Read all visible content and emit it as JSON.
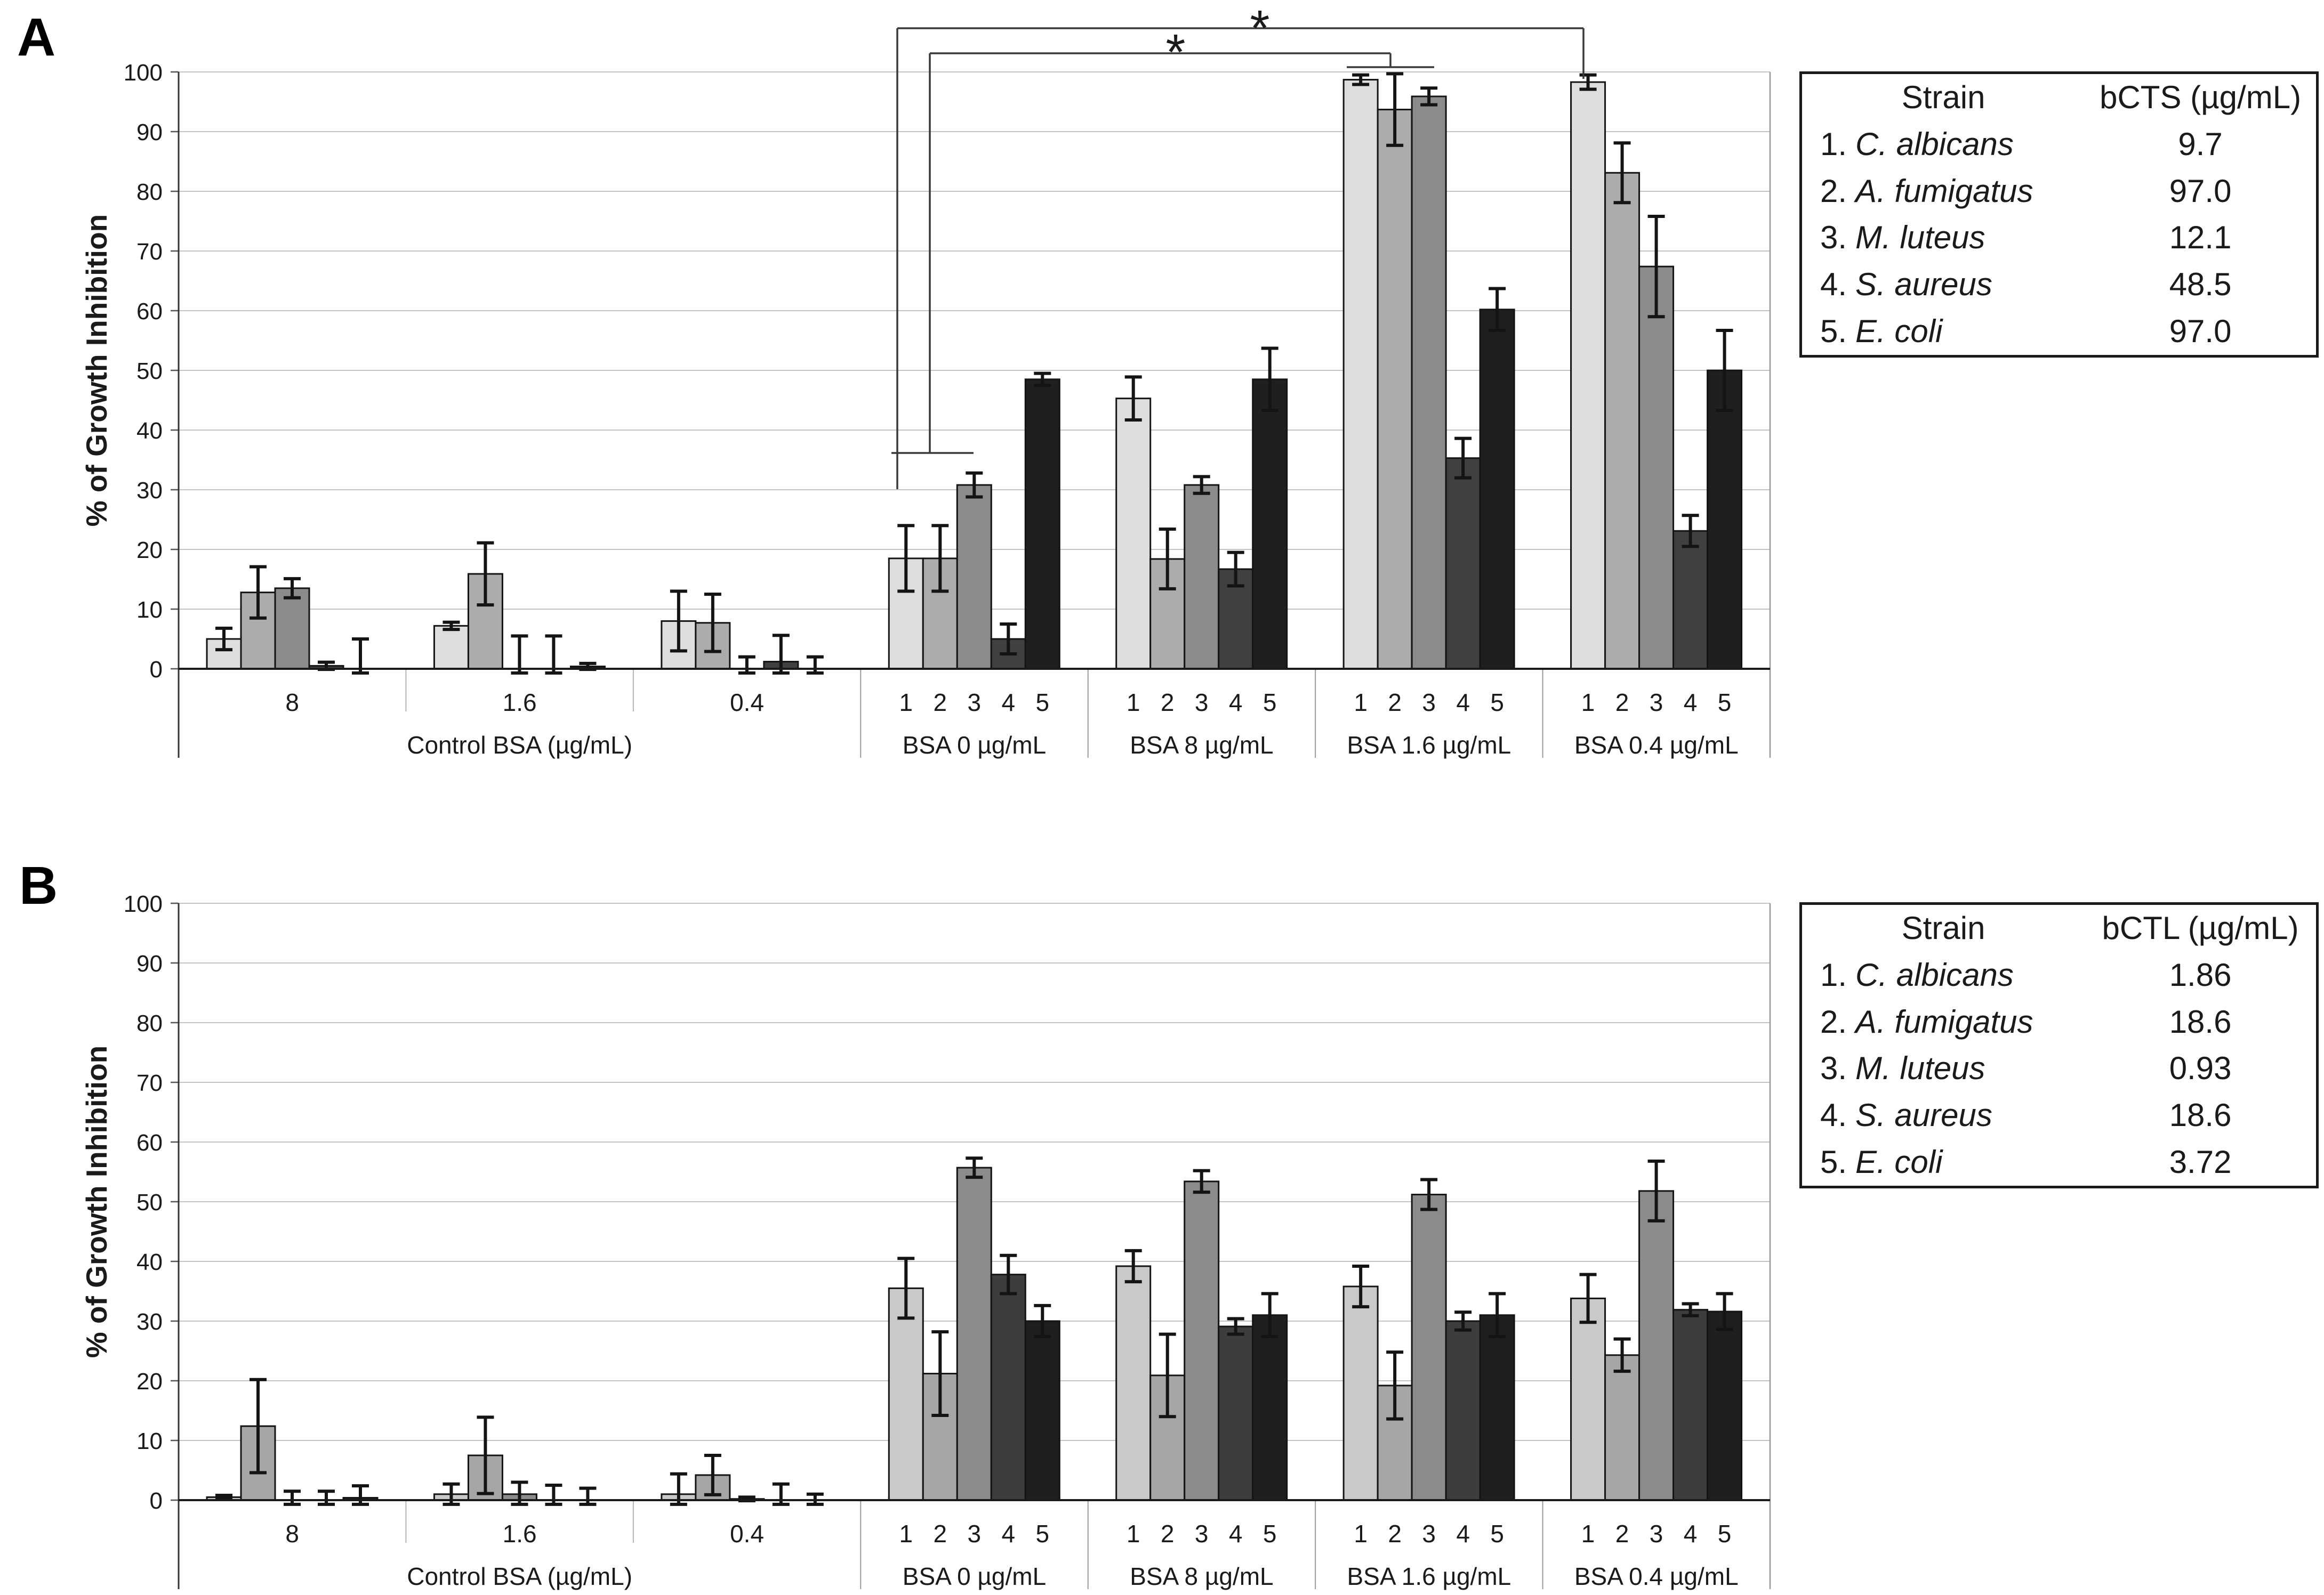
{
  "figure": {
    "panels": [
      {
        "letter": "A",
        "table": {
          "header": {
            "strain": "Strain",
            "mic": "bCTS (µg/mL)"
          },
          "rows": [
            {
              "num": "1.",
              "name": "C. albicans",
              "value": "9.7"
            },
            {
              "num": "2.",
              "name": "A. fumigatus",
              "value": "97.0"
            },
            {
              "num": "3.",
              "name": "M. luteus",
              "value": "12.1"
            },
            {
              "num": "4.",
              "name": "S. aureus",
              "value": "48.5"
            },
            {
              "num": "5.",
              "name": "E. coli",
              "value": "97.0"
            }
          ]
        }
      },
      {
        "letter": "B",
        "table": {
          "header": {
            "strain": "Strain",
            "mic": "bCTL (µg/mL)"
          },
          "rows": [
            {
              "num": "1.",
              "name": "C. albicans",
              "value": "1.86"
            },
            {
              "num": "2.",
              "name": "A. fumigatus",
              "value": "18.6"
            },
            {
              "num": "3.",
              "name": "M. luteus",
              "value": "0.93"
            },
            {
              "num": "4.",
              "name": "S. aureus",
              "value": "18.6"
            },
            {
              "num": "5.",
              "name": "E. coli",
              "value": "3.72"
            }
          ]
        }
      }
    ]
  },
  "chart_data": [
    {
      "type": "bar",
      "panel": "A",
      "title": "",
      "xlabel": "",
      "ylabel": "% of Growth Inhibition",
      "ylim": [
        0,
        100
      ],
      "ytick_step": 10,
      "grid": true,
      "legend_position": "none",
      "series_labels": [
        "1",
        "2",
        "3",
        "4",
        "5"
      ],
      "series_colors": [
        "#dedede",
        "#acacac",
        "#8b8b8b",
        "#404040",
        "#1f1f1f"
      ],
      "categories": [
        {
          "label": "Control BSA (µg/mL)",
          "groups": [
            0,
            1,
            2
          ]
        },
        {
          "label": "BSA 0 µg/mL",
          "groups": [
            3
          ]
        },
        {
          "label": "BSA 8 µg/mL",
          "groups": [
            4
          ]
        },
        {
          "label": "BSA 1.6 µg/mL",
          "groups": [
            5
          ]
        },
        {
          "label": "BSA 0.4 µg/mL",
          "groups": [
            6
          ]
        }
      ],
      "groups": [
        {
          "tick": "8",
          "per_bar_ticks": false,
          "values": [
            5.0,
            12.8,
            13.5,
            0.5,
            0.0
          ],
          "errors": [
            1.8,
            4.3,
            1.6,
            0.6,
            5.0
          ]
        },
        {
          "tick": "1.6",
          "per_bar_ticks": false,
          "values": [
            7.2,
            15.9,
            0.0,
            0.0,
            0.4
          ],
          "errors": [
            0.6,
            5.2,
            5.5,
            5.5,
            0.5
          ]
        },
        {
          "tick": "0.4",
          "per_bar_ticks": false,
          "values": [
            8.0,
            7.7,
            0.0,
            1.2,
            0.0
          ],
          "errors": [
            5.0,
            4.8,
            2.0,
            4.4,
            2.0
          ]
        },
        {
          "tick": "",
          "per_bar_ticks": true,
          "values": [
            18.5,
            18.5,
            30.8,
            5.0,
            48.5
          ],
          "errors": [
            5.5,
            5.5,
            2.0,
            2.5,
            1.0
          ]
        },
        {
          "tick": "",
          "per_bar_ticks": true,
          "values": [
            45.3,
            18.4,
            30.8,
            16.7,
            48.5
          ],
          "errors": [
            3.6,
            5.0,
            1.4,
            2.8,
            5.2
          ]
        },
        {
          "tick": "",
          "per_bar_ticks": true,
          "values": [
            98.7,
            93.7,
            95.9,
            35.3,
            60.2
          ],
          "errors": [
            0.8,
            6.0,
            1.4,
            3.3,
            3.5
          ]
        },
        {
          "tick": "",
          "per_bar_ticks": true,
          "values": [
            98.3,
            83.1,
            67.4,
            23.1,
            50.0
          ],
          "errors": [
            1.2,
            5.0,
            8.4,
            2.6,
            6.7
          ]
        }
      ],
      "significance": [
        {
          "symbol": "*",
          "note": "BSA 0 µg/mL strain 1 vs BSA 0.4 µg/mL",
          "segments": [
            [
              1683,
              53,
              1683,
              918
            ],
            [
              1683,
              53,
              2970,
              53
            ],
            [
              2970,
              53,
              2970,
              148
            ]
          ],
          "symbol_xy": [
            2363,
            85
          ]
        },
        {
          "symbol": "*",
          "note": "BSA 0 µg/mL strains 1-2 vs BSA 1.6 µg/mL",
          "segments": [
            [
              1744,
              100,
              1744,
              850
            ],
            [
              1672,
              850,
              1826,
              850
            ],
            [
              1744,
              100,
              2608,
              100
            ],
            [
              2608,
              100,
              2608,
              126
            ],
            [
              2526,
              126,
              2690,
              126
            ]
          ],
          "symbol_xy": [
            2205,
            130
          ]
        }
      ]
    },
    {
      "type": "bar",
      "panel": "B",
      "title": "",
      "xlabel": "",
      "ylabel": "% of Growth Inhibition",
      "ylim": [
        0,
        100
      ],
      "ytick_step": 10,
      "grid": true,
      "legend_position": "none",
      "series_labels": [
        "1",
        "2",
        "3",
        "4",
        "5"
      ],
      "series_colors": [
        "#c9c9c9",
        "#a6a6a6",
        "#8b8b8b",
        "#3d3d3d",
        "#1f1f1f"
      ],
      "categories": [
        {
          "label": "Control BSA (µg/mL)",
          "groups": [
            0,
            1,
            2
          ]
        },
        {
          "label": "BSA 0 µg/mL",
          "groups": [
            3
          ]
        },
        {
          "label": "BSA 8 µg/mL",
          "groups": [
            4
          ]
        },
        {
          "label": "BSA 1.6 µg/mL",
          "groups": [
            5
          ]
        },
        {
          "label": "BSA 0.4 µg/mL",
          "groups": [
            6
          ]
        }
      ],
      "groups": [
        {
          "tick": "8",
          "per_bar_ticks": false,
          "values": [
            0.5,
            12.4,
            0.0,
            0.0,
            0.4
          ],
          "errors": [
            0.3,
            7.8,
            1.5,
            1.5,
            2.0
          ]
        },
        {
          "tick": "1.6",
          "per_bar_ticks": false,
          "values": [
            1.0,
            7.5,
            1.0,
            0.0,
            0.0
          ],
          "errors": [
            1.7,
            6.4,
            2.0,
            2.5,
            2.0
          ]
        },
        {
          "tick": "0.4",
          "per_bar_ticks": false,
          "values": [
            1.0,
            4.2,
            0.2,
            0.0,
            0.0
          ],
          "errors": [
            3.4,
            3.3,
            0.3,
            2.7,
            1.0
          ]
        },
        {
          "tick": "",
          "per_bar_ticks": true,
          "values": [
            35.5,
            21.2,
            55.7,
            37.8,
            30.0
          ],
          "errors": [
            5.0,
            7.0,
            1.6,
            3.2,
            2.6
          ]
        },
        {
          "tick": "",
          "per_bar_ticks": true,
          "values": [
            39.2,
            20.9,
            53.4,
            29.1,
            31.0
          ],
          "errors": [
            2.6,
            6.9,
            1.8,
            1.3,
            3.6
          ]
        },
        {
          "tick": "",
          "per_bar_ticks": true,
          "values": [
            35.8,
            19.2,
            51.2,
            30.0,
            31.0
          ],
          "errors": [
            3.4,
            5.6,
            2.5,
            1.5,
            3.6
          ]
        },
        {
          "tick": "",
          "per_bar_ticks": true,
          "values": [
            33.8,
            24.3,
            51.8,
            31.9,
            31.6
          ],
          "errors": [
            4.0,
            2.7,
            5.0,
            1.0,
            3.0
          ]
        }
      ],
      "significance": []
    }
  ]
}
